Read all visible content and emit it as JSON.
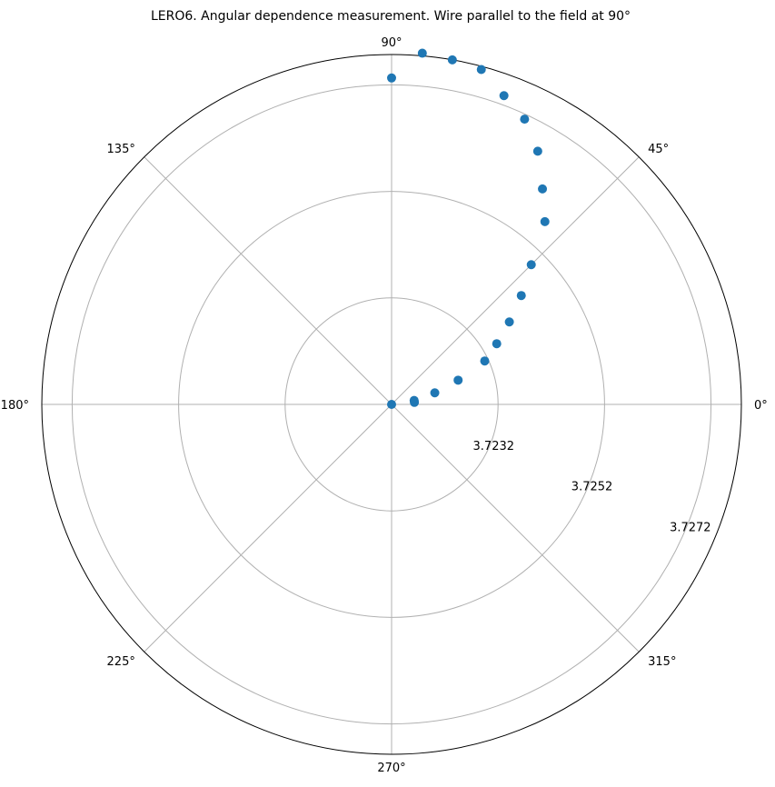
{
  "chart_data": {
    "type": "scatter",
    "projection": "polar",
    "title": "LERO6. Angular dependence measurement. Wire parallel to the field at 90°",
    "theta_unit": "degrees",
    "theta_ticks": [
      "0°",
      "45°",
      "90°",
      "135°",
      "180°",
      "225°",
      "270°",
      "315°"
    ],
    "r_tick_values": [
      3.7232,
      3.7252,
      3.7272
    ],
    "r_tick_labels": [
      "3.7232",
      "3.7252",
      "3.7272"
    ],
    "rlim": [
      3.7212,
      3.72777
    ],
    "grid": true,
    "marker_color": "#1f77b4",
    "axis_color": "#000000",
    "grid_color": "#b0b0b0",
    "series": [
      {
        "theta": [
          0,
          5,
          10,
          15,
          20,
          25,
          30,
          35,
          40,
          45,
          50,
          55,
          60,
          65,
          70,
          75,
          80,
          85,
          90
        ],
        "r": [
          3.7212,
          3.72163,
          3.72163,
          3.72204,
          3.72253,
          3.72313,
          3.72348,
          3.7239,
          3.72438,
          3.72491,
          3.72568,
          3.72614,
          3.72669,
          3.72711,
          3.72737,
          3.72771,
          3.72777,
          3.72782,
          3.72733
        ]
      }
    ]
  }
}
